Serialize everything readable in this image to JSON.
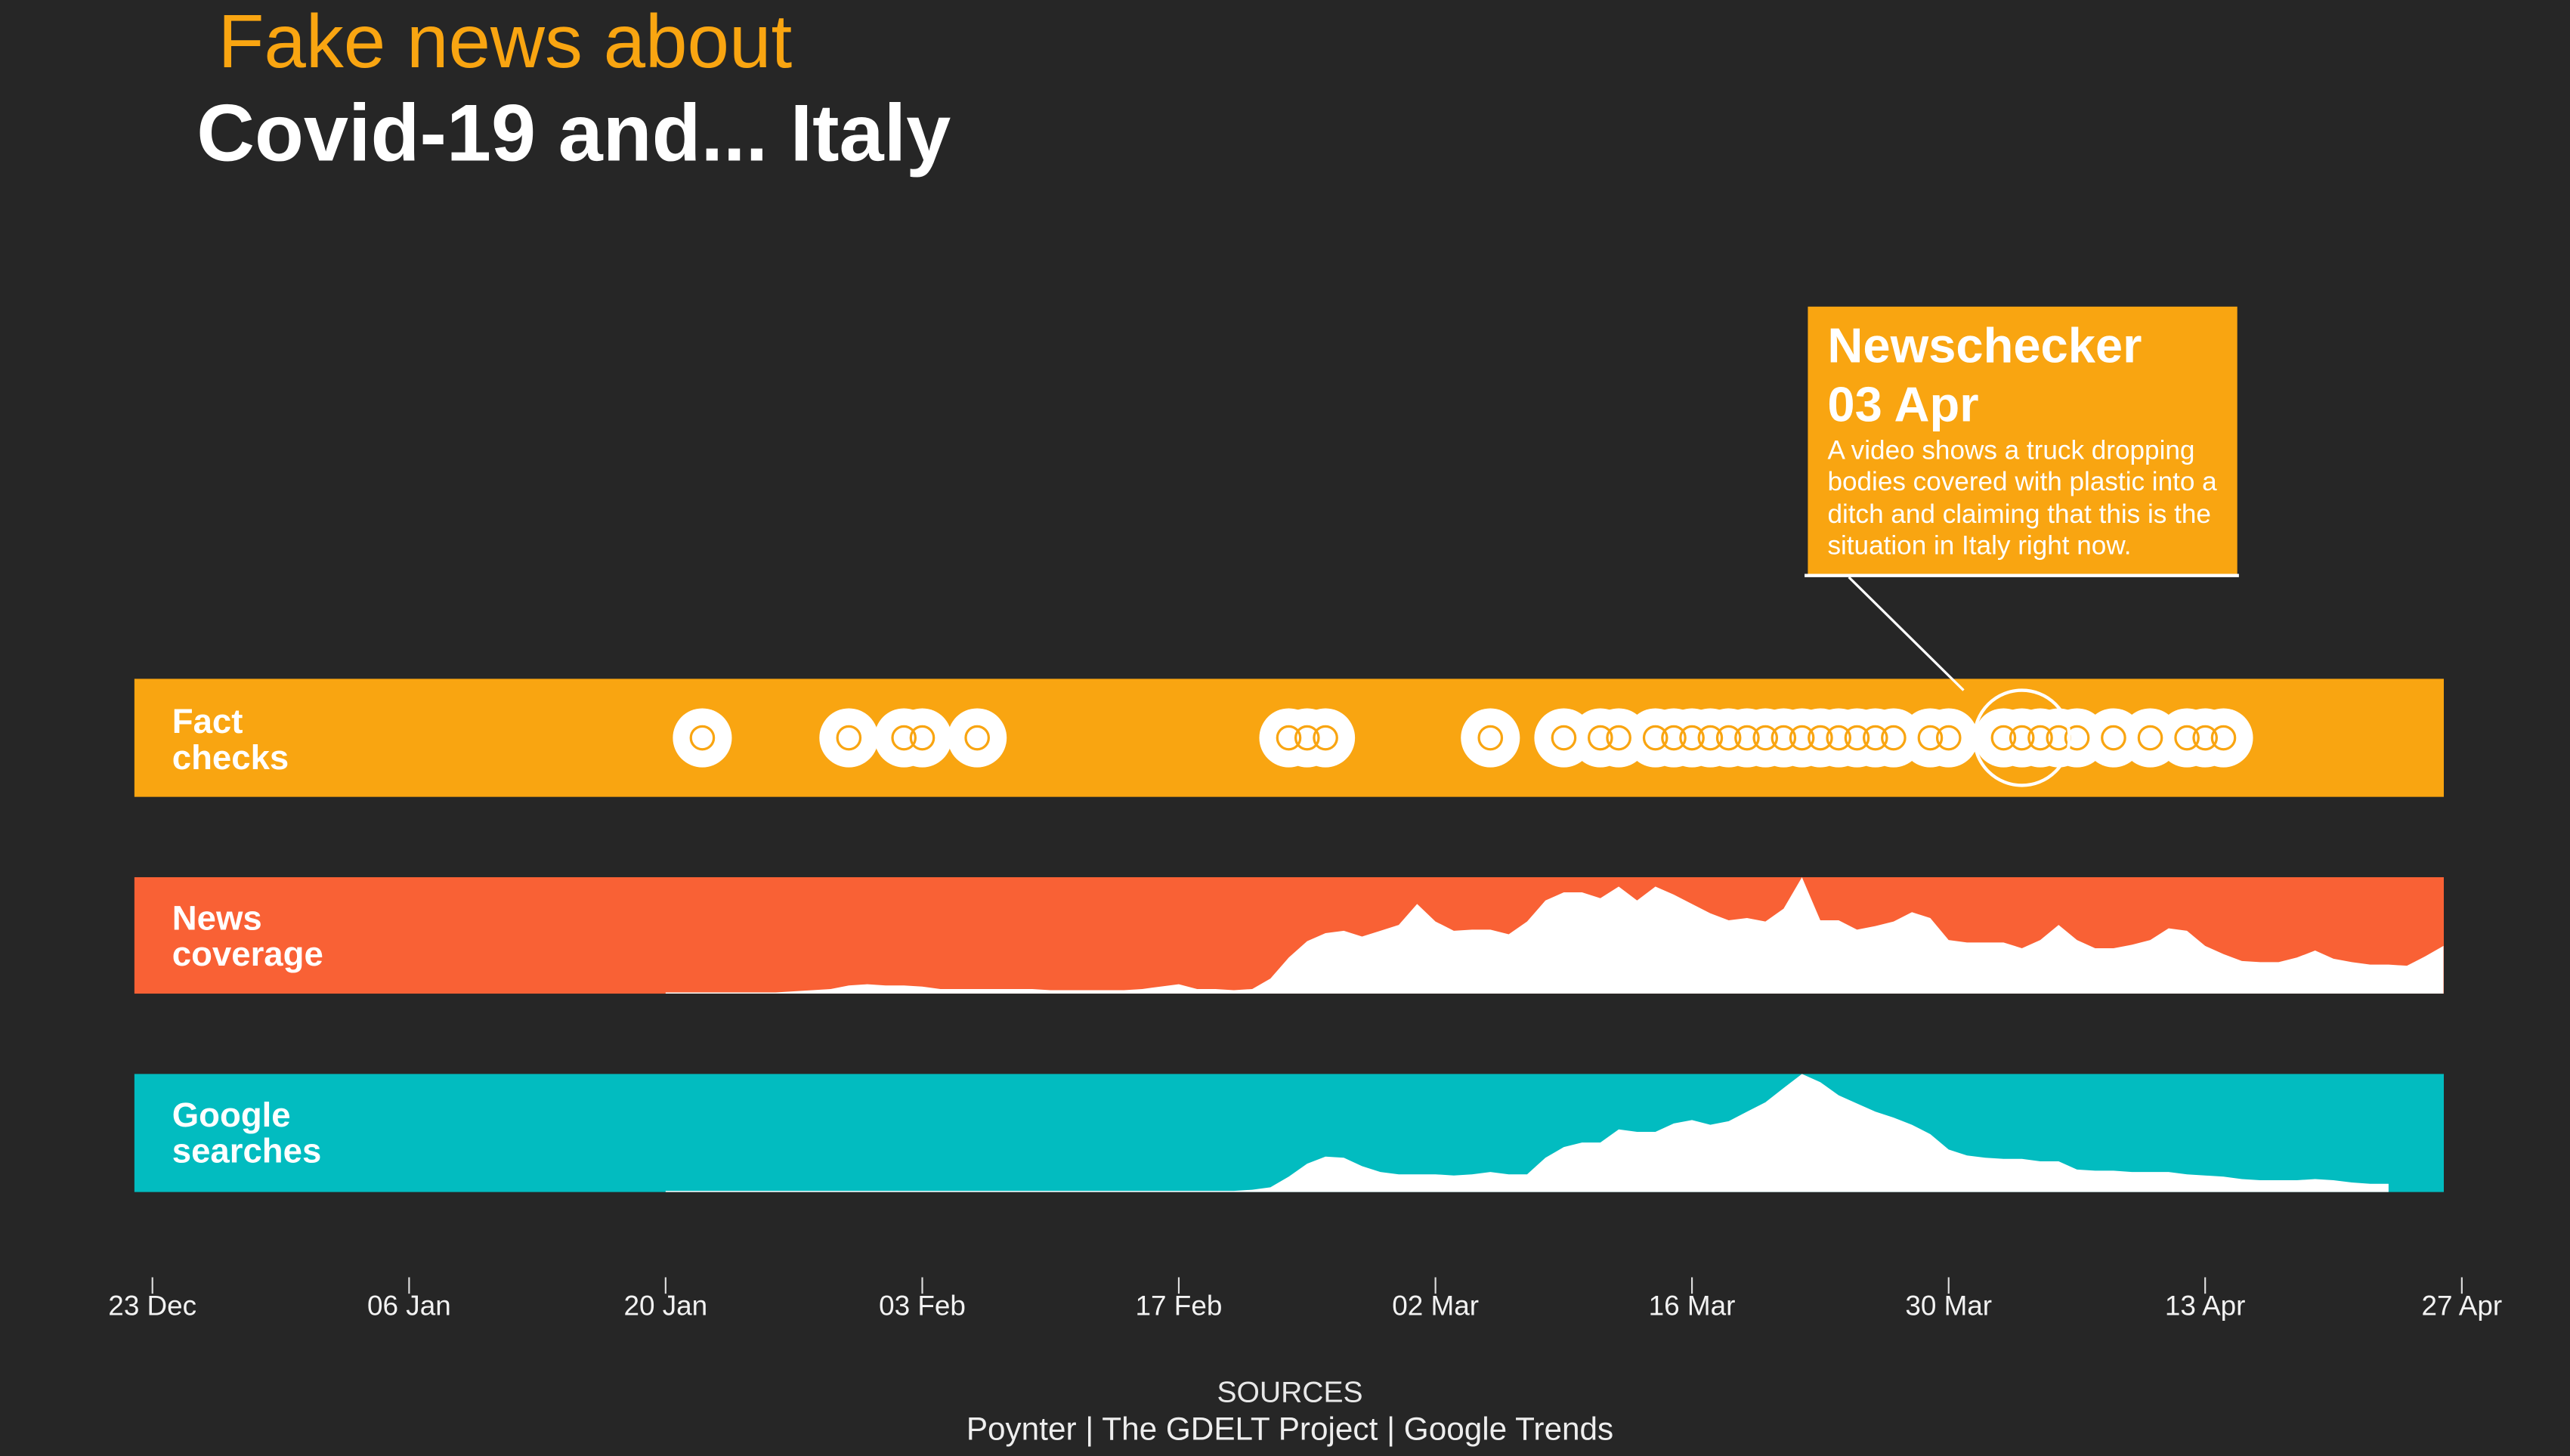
{
  "colors": {
    "background": "#262626",
    "fact_checks": "#f9a511",
    "news_coverage": "#f96135",
    "google_searches": "#02bcc0",
    "marker": "#ffffff"
  },
  "chart_data": {
    "type": "area",
    "title_lines": [
      "Fake news about",
      "Covid-19 and... Italy"
    ],
    "xlim": [
      "23 Dec",
      "27 Apr"
    ],
    "x_ticks": [
      "23 Dec",
      "06 Jan",
      "20 Jan",
      "03 Feb",
      "17 Feb",
      "02 Mar",
      "16 Mar",
      "30 Mar",
      "13 Apr",
      "27 Apr"
    ],
    "ylim": [
      0,
      100
    ],
    "grid": false,
    "x": [
      "20 Jan",
      "21 Jan",
      "22 Jan",
      "23 Jan",
      "24 Jan",
      "25 Jan",
      "26 Jan",
      "27 Jan",
      "28 Jan",
      "29 Jan",
      "30 Jan",
      "31 Jan",
      "01 Feb",
      "02 Feb",
      "03 Feb",
      "04 Feb",
      "05 Feb",
      "06 Feb",
      "07 Feb",
      "08 Feb",
      "09 Feb",
      "10 Feb",
      "11 Feb",
      "12 Feb",
      "13 Feb",
      "14 Feb",
      "15 Feb",
      "16 Feb",
      "17 Feb",
      "18 Feb",
      "19 Feb",
      "20 Feb",
      "21 Feb",
      "22 Feb",
      "23 Feb",
      "24 Feb",
      "25 Feb",
      "26 Feb",
      "27 Feb",
      "28 Feb",
      "29 Feb",
      "01 Mar",
      "02 Mar",
      "03 Mar",
      "04 Mar",
      "05 Mar",
      "06 Mar",
      "07 Mar",
      "08 Mar",
      "09 Mar",
      "10 Mar",
      "11 Mar",
      "12 Mar",
      "13 Mar",
      "14 Mar",
      "15 Mar",
      "16 Mar",
      "17 Mar",
      "18 Mar",
      "19 Mar",
      "20 Mar",
      "21 Mar",
      "22 Mar",
      "23 Mar",
      "24 Mar",
      "25 Mar",
      "26 Mar",
      "27 Mar",
      "28 Mar",
      "29 Mar",
      "30 Mar",
      "31 Mar",
      "01 Apr",
      "02 Apr",
      "03 Apr",
      "04 Apr",
      "05 Apr",
      "06 Apr",
      "07 Apr",
      "08 Apr",
      "09 Apr",
      "10 Apr",
      "11 Apr",
      "12 Apr",
      "13 Apr",
      "14 Apr",
      "15 Apr",
      "16 Apr",
      "17 Apr",
      "18 Apr",
      "19 Apr",
      "20 Apr",
      "21 Apr",
      "22 Apr",
      "23 Apr",
      "24 Apr",
      "25 Apr",
      "26 Apr"
    ],
    "series": [
      {
        "name": "Fact checks",
        "type": "event",
        "dates": [
          "22 Jan",
          "30 Jan",
          "02 Feb",
          "03 Feb",
          "06 Feb",
          "23 Feb",
          "24 Feb",
          "25 Feb",
          "05 Mar",
          "09 Mar",
          "11 Mar",
          "12 Mar",
          "14 Mar",
          "15 Mar",
          "16 Mar",
          "17 Mar",
          "18 Mar",
          "19 Mar",
          "20 Mar",
          "21 Mar",
          "22 Mar",
          "23 Mar",
          "24 Mar",
          "25 Mar",
          "26 Mar",
          "27 Mar",
          "29 Mar",
          "30 Mar",
          "02 Apr",
          "03 Apr",
          "04 Apr",
          "05 Apr",
          "06 Apr",
          "08 Apr",
          "10 Apr",
          "12 Apr",
          "13 Apr",
          "14 Apr"
        ]
      },
      {
        "name": "News coverage",
        "type": "area",
        "values": [
          1,
          1,
          1,
          1,
          1,
          1,
          1,
          2,
          3,
          4,
          7,
          8,
          7,
          7,
          6,
          4,
          4,
          4,
          4,
          4,
          4,
          3,
          3,
          3,
          3,
          3,
          4,
          6,
          8,
          4,
          4,
          3,
          4,
          13,
          31,
          45,
          52,
          54,
          49,
          54,
          59,
          77,
          62,
          54,
          55,
          55,
          51,
          62,
          80,
          87,
          87,
          82,
          92,
          80,
          92,
          85,
          77,
          69,
          63,
          65,
          62,
          73,
          100,
          63,
          63,
          55,
          58,
          62,
          70,
          65,
          46,
          44,
          44,
          44,
          39,
          46,
          59,
          46,
          39,
          39,
          42,
          46,
          56,
          54,
          41,
          34,
          28,
          27,
          27,
          31,
          37,
          30,
          27,
          25,
          25,
          24,
          32,
          41
        ]
      },
      {
        "name": "Google searches",
        "type": "area",
        "values": [
          1,
          1,
          1,
          1,
          1,
          1,
          1,
          1,
          1,
          1,
          1,
          1,
          1,
          1,
          1,
          1,
          1,
          1,
          1,
          1,
          1,
          1,
          1,
          1,
          1,
          1,
          1,
          1,
          1,
          1,
          1,
          1,
          2,
          4,
          13,
          24,
          30,
          29,
          22,
          17,
          15,
          15,
          15,
          14,
          15,
          17,
          15,
          15,
          29,
          38,
          42,
          42,
          53,
          51,
          51,
          58,
          61,
          57,
          60,
          68,
          76,
          88,
          100,
          93,
          82,
          75,
          68,
          63,
          57,
          49,
          36,
          31,
          29,
          28,
          28,
          26,
          26,
          19,
          18,
          18,
          17,
          17,
          17,
          15,
          14,
          13,
          11,
          10,
          10,
          10,
          11,
          10,
          8,
          7,
          7,
          null,
          null,
          null
        ]
      }
    ],
    "annotation": {
      "source": "Newschecker",
      "date": "03 Apr",
      "text": "A video shows a truck dropping bodies covered with plastic into a ditch and claiming that this is the situation in Italy right now."
    },
    "sources": {
      "heading": "SOURCES",
      "text": "Poynter | The GDELT Project | Google Trends"
    }
  }
}
